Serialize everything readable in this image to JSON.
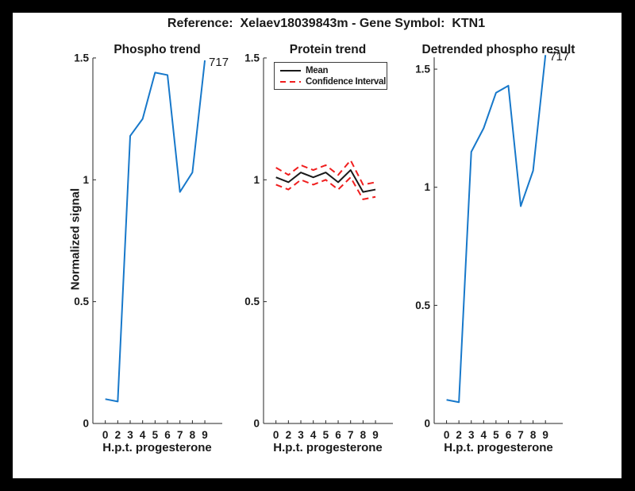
{
  "figure": {
    "title": "Reference:  Xelaev18039843m - Gene Symbol:  KTN1",
    "frame_color": "#000000",
    "canvas_color": "#ffffff",
    "axis_color": "#262626",
    "text_color": "#1a1a1a"
  },
  "chart_data": [
    {
      "type": "line",
      "title": "Phospho trend",
      "xlabel": "H.p.t. progesterone",
      "ylabel": "Normalized signal",
      "x_tick_labels": [
        "0",
        "2",
        "3",
        "4",
        "5",
        "6",
        "7",
        "8",
        "9"
      ],
      "y_ticks": [
        0,
        0.5,
        1,
        1.5
      ],
      "ylim": [
        0,
        1.5
      ],
      "grid": false,
      "series": [
        {
          "name": "phospho-signal",
          "color": "#1778CA",
          "style": "solid",
          "values": [
            0.1,
            0.09,
            1.18,
            1.25,
            1.44,
            1.43,
            0.95,
            1.03,
            1.49
          ]
        }
      ],
      "annotation": {
        "text": "717",
        "at_index": 8
      }
    },
    {
      "type": "line",
      "title": "Protein trend",
      "xlabel": "H.p.t. progesterone",
      "ylabel": "",
      "x_tick_labels": [
        "0",
        "2",
        "3",
        "4",
        "5",
        "6",
        "7",
        "8",
        "9"
      ],
      "y_ticks": [
        0,
        0.5,
        1,
        1.5
      ],
      "ylim": [
        0,
        1.5
      ],
      "grid": false,
      "legend": {
        "position": "northeast",
        "entries": [
          {
            "label": "Mean",
            "color": "#1a1a1a",
            "style": "solid"
          },
          {
            "label": "Confidence Interval",
            "color": "#F01E1E",
            "style": "dashed"
          }
        ]
      },
      "series": [
        {
          "name": "protein-mean",
          "color": "#1a1a1a",
          "style": "solid",
          "values": [
            1.01,
            0.99,
            1.03,
            1.01,
            1.03,
            0.99,
            1.04,
            0.95,
            0.96
          ]
        },
        {
          "name": "confidence-upper",
          "color": "#F01E1E",
          "style": "dashed",
          "values": [
            1.05,
            1.02,
            1.06,
            1.04,
            1.06,
            1.02,
            1.08,
            0.98,
            0.99
          ]
        },
        {
          "name": "confidence-lower",
          "color": "#F01E1E",
          "style": "dashed",
          "values": [
            0.98,
            0.96,
            1.0,
            0.98,
            1.0,
            0.96,
            1.01,
            0.92,
            0.93
          ]
        }
      ]
    },
    {
      "type": "line",
      "title": "Detrended phospho result",
      "xlabel": "H.p.t. progesterone",
      "ylabel": "",
      "x_tick_labels": [
        "0",
        "2",
        "3",
        "4",
        "5",
        "6",
        "7",
        "8",
        "9"
      ],
      "y_ticks": [
        0,
        0.5,
        1,
        1.5
      ],
      "ylim": [
        0,
        1.55
      ],
      "grid": false,
      "series": [
        {
          "name": "detrended-phospho",
          "color": "#1778CA",
          "style": "solid",
          "values": [
            0.1,
            0.09,
            1.15,
            1.25,
            1.4,
            1.43,
            0.92,
            1.07,
            1.56
          ]
        }
      ],
      "annotation": {
        "text": "717",
        "at_index": 8
      }
    }
  ]
}
